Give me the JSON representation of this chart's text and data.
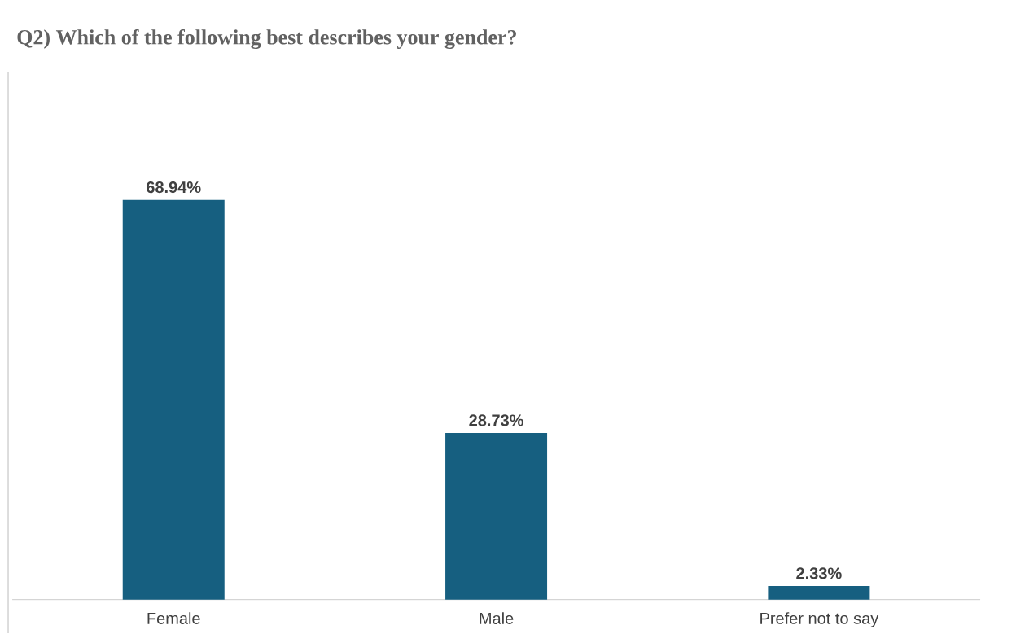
{
  "chart_data": {
    "type": "bar",
    "title": "Q2) Which of the following best describes your gender?",
    "categories": [
      "Female",
      "Male",
      "Prefer not to say"
    ],
    "values": [
      68.94,
      28.73,
      2.33
    ],
    "value_labels": [
      "68.94%",
      "28.73%",
      "2.33%"
    ],
    "color": "#165f80"
  }
}
